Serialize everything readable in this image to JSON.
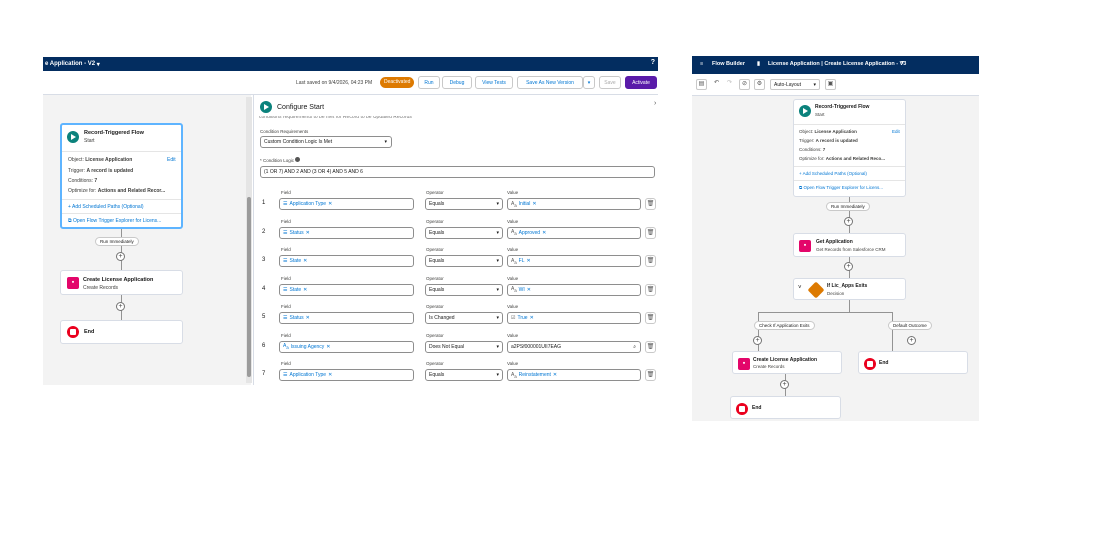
{
  "left": {
    "header_title": "e Application - V2",
    "help": "?",
    "toolbar": {
      "saved": "Last saved on 9/4/2026, 04:23 PM",
      "status": "Deactivated",
      "run": "Run",
      "debug": "Debug",
      "view_tests": "View Tests",
      "save_as": "Save As New Version",
      "save": "Save",
      "activate": "Activate"
    },
    "start": {
      "title": "Record-Triggered Flow",
      "sub": "Start",
      "object_label": "Object:",
      "object": "License Application",
      "edit": "Edit",
      "trigger_label": "Trigger:",
      "trigger": "A record is updated",
      "conditions_label": "Conditions:",
      "conditions": "7",
      "optimize_label": "Optimize for:",
      "optimize": "Actions and Related Recor...",
      "scheduled": "Add Scheduled Paths (Optional)",
      "explorer": "Open Flow Trigger Explorer for Licens..."
    },
    "run_immediately": "Run Immediately",
    "create": {
      "title": "Create License Application",
      "sub": "Create Records"
    },
    "end": "End",
    "panel": {
      "title": "Configure Start",
      "cut_text": "conditions requirements to be met for Record to be Updated Records",
      "cond_req_label": "Condition Requirements",
      "cond_req_value": "Custom Condition Logic Is Met",
      "logic_label": "* Condition Logic",
      "logic": "(1 OR 7) AND 2 AND (3 OR 4) AND 5 AND 6",
      "col_field": "Field",
      "col_operator": "Operator",
      "col_value": "Value",
      "rows": [
        {
          "n": "1",
          "field": "Application Type",
          "op": "Equals",
          "value": "Initial"
        },
        {
          "n": "2",
          "field": "Status",
          "op": "Equals",
          "value": "Approved"
        },
        {
          "n": "3",
          "field": "State",
          "op": "Equals",
          "value": "FL"
        },
        {
          "n": "4",
          "field": "State",
          "op": "Equals",
          "value": "WI"
        },
        {
          "n": "5",
          "field": "Status",
          "op": "Is Changed",
          "value": "True"
        },
        {
          "n": "6",
          "field": "Issuing Agency",
          "op": "Does Not Equal",
          "value": "a2PSf000001UII7EAG"
        },
        {
          "n": "7",
          "field": "Application Type",
          "op": "Equals",
          "value": "Reinstatement"
        }
      ]
    }
  },
  "right": {
    "app": "Flow Builder",
    "title": "License Application | Create License Application - V3",
    "layout": "Auto-Layout",
    "start": {
      "title": "Record-Triggered Flow",
      "sub": "Start",
      "object_label": "Object:",
      "object": "License Application",
      "edit": "Edit",
      "trigger_label": "Trigger:",
      "trigger": "A record is updated",
      "conditions_label": "Conditions:",
      "conditions": "7",
      "optimize_label": "Optimize for:",
      "optimize": "Actions and Related Reco...",
      "scheduled": "Add Scheduled Paths (Optional)",
      "explorer": "Open Flow Trigger Explorer for Licens..."
    },
    "run_immediately": "Run Immediately",
    "get": {
      "title": "Get Application",
      "sub": "Get Records from Salesforce CRM"
    },
    "decision": {
      "title": "If Lic_Apps Exits",
      "sub": "Decision"
    },
    "outcome1": "Check If Application Exits",
    "outcome2": "Default Outcome",
    "create": {
      "title": "Create License Application",
      "sub": "Create Records"
    },
    "end": "End"
  }
}
